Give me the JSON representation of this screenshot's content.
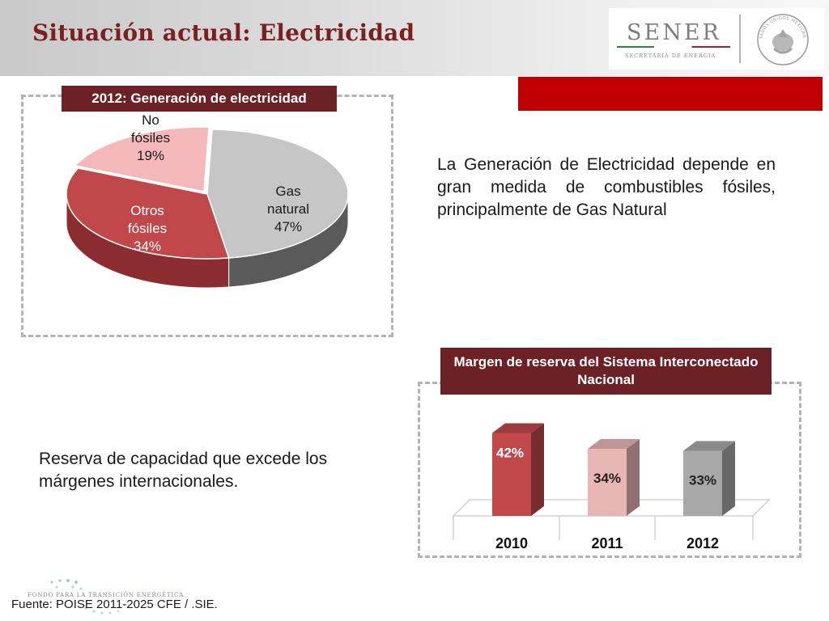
{
  "header": {
    "title": "Situación actual: Electricidad",
    "logo_name": "SENER",
    "logo_subtitle": "SECRETARÍA DE ENERGÍA",
    "seal_text": "ESTADOS UNIDOS MEXICANOS"
  },
  "description": "La Generación de Electricidad depende en gran medida de combustibles fósiles, principalmente de Gas Natural",
  "reserve_note": "Reserva de capacidad que excede los márgenes internacionales.",
  "source": "Fuente: POISE 2011-2025 CFE / .SIE.",
  "footer_logo_text": "FONDO PARA LA TRANSICIÓN ENERGÉTICA",
  "colors": {
    "title": "#7a1f22",
    "header_box": "#6b2125",
    "red_bar": "#c00000",
    "gas": "#c6c6c6",
    "otros": "#c0474a",
    "no_fosiles": "#f6b9bb"
  },
  "chart_data": [
    {
      "type": "pie",
      "title": "2012: Generación de electricidad",
      "slices": [
        {
          "label_lines": [
            "Gas",
            "natural"
          ],
          "value": 47,
          "value_label": "47%",
          "color": "#c6c6c6",
          "side": "#5a5a5a"
        },
        {
          "label_lines": [
            "Otros",
            "fósiles"
          ],
          "value": 34,
          "value_label": "34%",
          "color": "#c0474a",
          "side": "#8a2c30"
        },
        {
          "label_lines": [
            "No",
            "fósiles"
          ],
          "value": 19,
          "value_label": "19%",
          "color": "#f6b9bb",
          "side": "#d89496"
        }
      ]
    },
    {
      "type": "bar",
      "title": "Margen de reserva del Sistema Interconectado Nacional",
      "categories": [
        "2010",
        "2011",
        "2012"
      ],
      "values": [
        42,
        34,
        33
      ],
      "value_labels": [
        "42%",
        "34%",
        "33%"
      ],
      "colors": [
        "#c0474a",
        "#e9b6b6",
        "#a8a8a8"
      ],
      "ylim": [
        0,
        50
      ]
    }
  ]
}
